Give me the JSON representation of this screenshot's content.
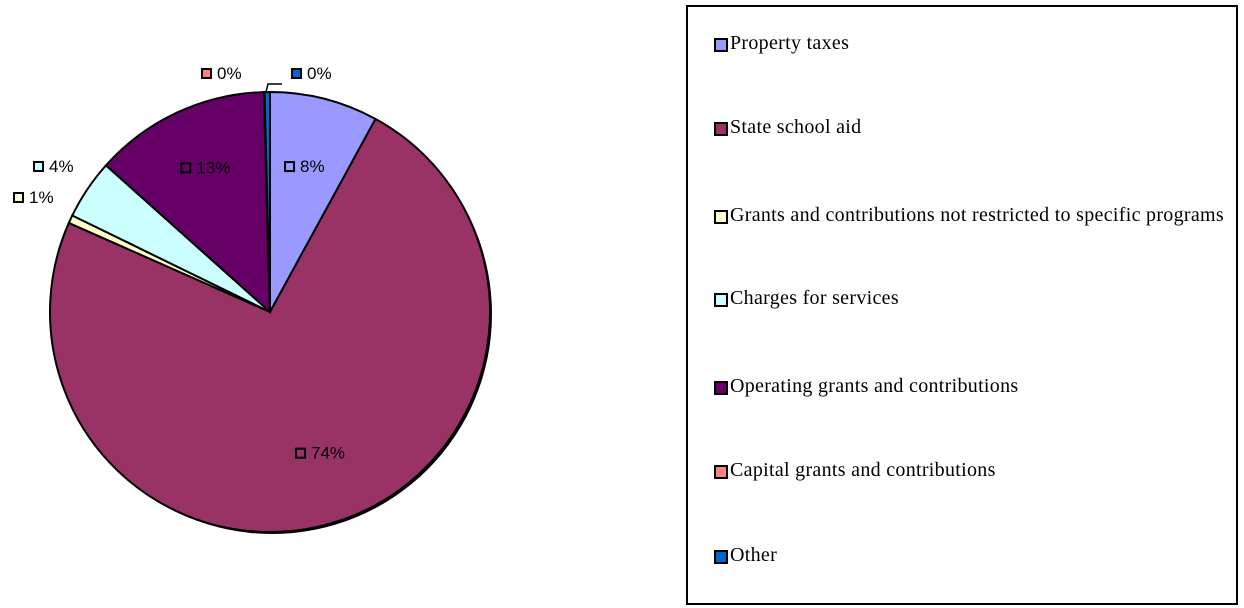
{
  "chart_data": {
    "type": "pie",
    "slices": [
      {
        "label": "Property taxes",
        "value": 8,
        "value_label": "8%",
        "color": "#9999ff"
      },
      {
        "label": "State school aid",
        "value": 74,
        "value_label": "74%",
        "color": "#993366"
      },
      {
        "label": "Grants and contributions not restricted to specific programs",
        "value": 0.6,
        "value_label": "1%",
        "color": "#ffffcc"
      },
      {
        "label": "Charges for services",
        "value": 4.4,
        "value_label": "4%",
        "color": "#ccffff"
      },
      {
        "label": "Operating grants and contributions",
        "value": 13,
        "value_label": "13%",
        "color": "#660066"
      },
      {
        "label": "Capital grants and contributions",
        "value": 0.05,
        "value_label": "0%",
        "color": "#ff8080"
      },
      {
        "label": "Other",
        "value": 0.4,
        "value_label": "0%",
        "color": "#0066cc"
      }
    ],
    "legend_position": "right"
  }
}
